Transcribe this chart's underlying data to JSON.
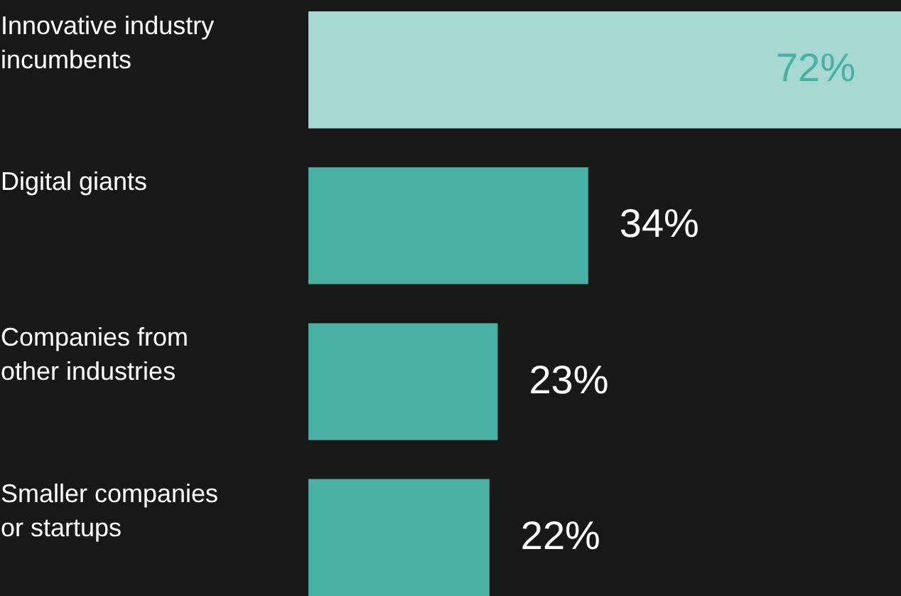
{
  "chart_data": {
    "type": "bar",
    "orientation": "horizontal",
    "categories": [
      "Innovative industry incumbents",
      "Digital giants",
      "Companies from other industries",
      "Smaller companies or startups"
    ],
    "values": [
      72,
      34,
      23,
      22
    ],
    "colors": [
      "#a8d8d3",
      "#48b1a3",
      "#48b1a3",
      "#48b1a3"
    ],
    "value_labels": [
      "72%",
      "34%",
      "23%",
      "22%"
    ]
  }
}
